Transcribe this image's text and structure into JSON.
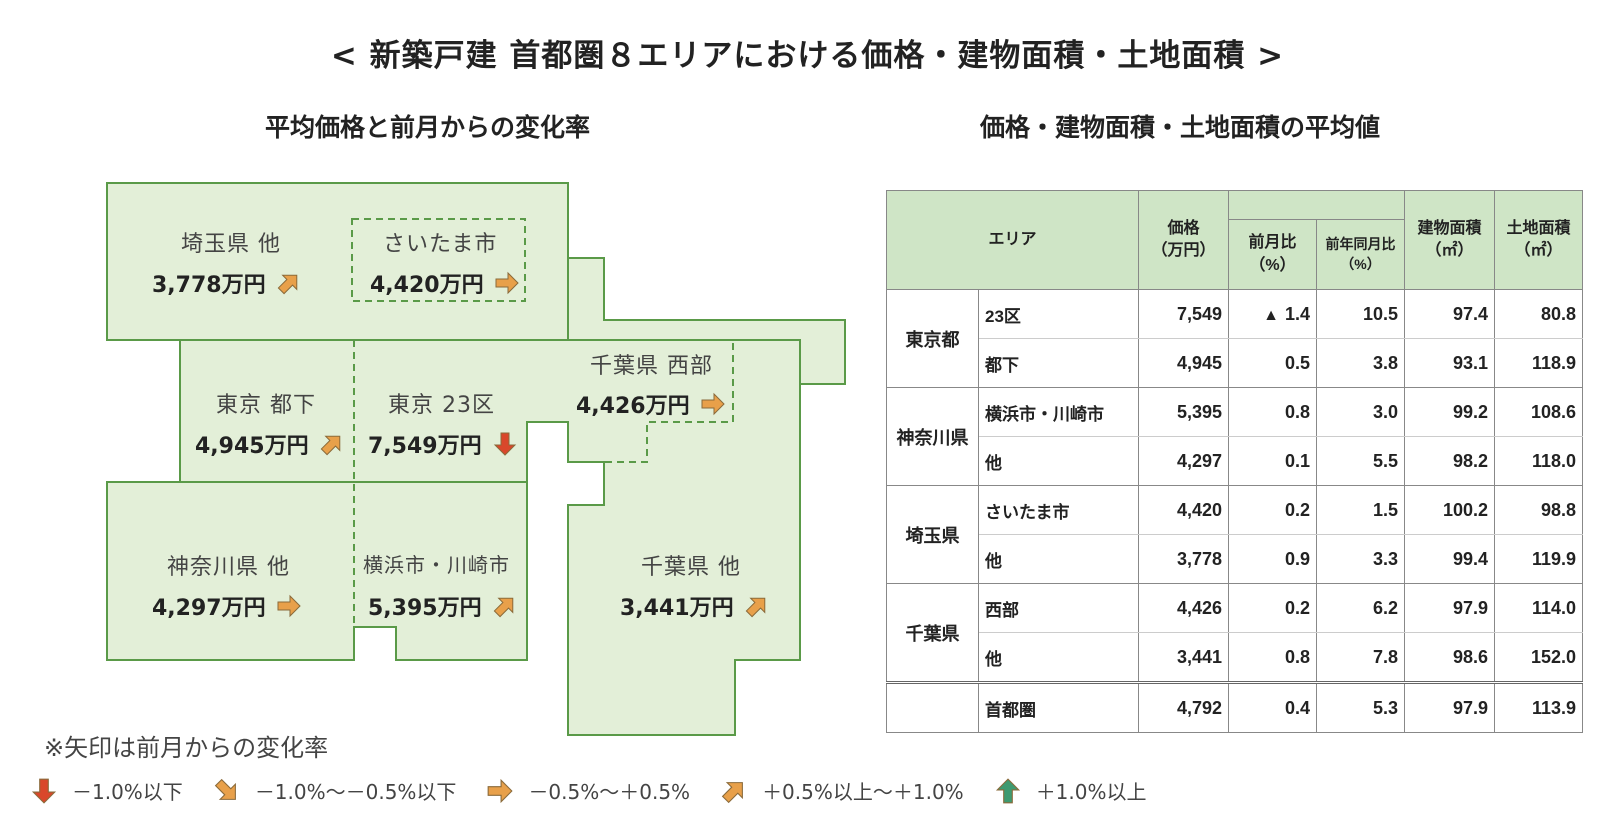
{
  "title": "< 新築戸建  首都圏８エリアにおける価格・建物面積・土地面積 >",
  "left_heading": "平均価格と前月からの変化率",
  "right_heading": "価格・建物面積・土地面積の平均値",
  "colors": {
    "region_fill": "#e3efd8",
    "region_stroke": "#5a9a48",
    "header_fill": "#cfe5c6",
    "arrow_down": "#d9472b",
    "arrow_flat": "#e8a04a",
    "arrow_up": "#3e9a70"
  },
  "chart_data": {
    "type": "table",
    "map_regions": [
      {
        "id": "saitama-other",
        "name": "埼玉県 他",
        "price": "3,778万円",
        "trend": "up-slight"
      },
      {
        "id": "saitama-city",
        "name": "さいたま市",
        "price": "4,420万円",
        "trend": "flat"
      },
      {
        "id": "tokyo-other",
        "name": "東京 都下",
        "price": "4,945万円",
        "trend": "up-slight"
      },
      {
        "id": "tokyo-23",
        "name": "東京 23区",
        "price": "7,549万円",
        "trend": "down"
      },
      {
        "id": "chiba-west",
        "name": "千葉県 西部",
        "price": "4,426万円",
        "trend": "flat"
      },
      {
        "id": "kanagawa-other",
        "name": "神奈川県 他",
        "price": "4,297万円",
        "trend": "flat"
      },
      {
        "id": "yokohama-kawasaki",
        "name": "横浜市・川崎市",
        "price": "5,395万円",
        "trend": "up-slight"
      },
      {
        "id": "chiba-other",
        "name": "千葉県 他",
        "price": "3,441万円",
        "trend": "up-slight"
      }
    ],
    "note": "※矢印は前月からの変化率",
    "legend": [
      {
        "trend": "down",
        "label": "－1.0%以下"
      },
      {
        "trend": "down-slight",
        "label": "－1.0%～－0.5%以下"
      },
      {
        "trend": "flat",
        "label": "－0.5%～＋0.5%"
      },
      {
        "trend": "up-slight",
        "label": "＋0.5%以上～＋1.0%"
      },
      {
        "trend": "up",
        "label": "＋1.0%以上"
      }
    ],
    "table": {
      "headers": {
        "area": "エリア",
        "price": "価格",
        "price_unit": "（万円）",
        "mom": "前月比",
        "mom_unit": "（%）",
        "yoy": "前年同月比",
        "yoy_unit": "（%）",
        "building": "建物面積",
        "building_unit": "（㎡）",
        "land": "土地面積",
        "land_unit": "（㎡）"
      },
      "groups": [
        {
          "pref": "東京都",
          "rows": [
            {
              "area": "23区",
              "price": "7,549",
              "mom_mark": "▲",
              "mom": "1.4",
              "yoy": "10.5",
              "building": "97.4",
              "land": "80.8"
            },
            {
              "area": "都下",
              "price": "4,945",
              "mom_mark": "",
              "mom": "0.5",
              "yoy": "3.8",
              "building": "93.1",
              "land": "118.9"
            }
          ]
        },
        {
          "pref": "神奈川県",
          "rows": [
            {
              "area": "横浜市・川崎市",
              "price": "5,395",
              "mom_mark": "",
              "mom": "0.8",
              "yoy": "3.0",
              "building": "99.2",
              "land": "108.6"
            },
            {
              "area": "他",
              "price": "4,297",
              "mom_mark": "",
              "mom": "0.1",
              "yoy": "5.5",
              "building": "98.2",
              "land": "118.0"
            }
          ]
        },
        {
          "pref": "埼玉県",
          "rows": [
            {
              "area": "さいたま市",
              "price": "4,420",
              "mom_mark": "",
              "mom": "0.2",
              "yoy": "1.5",
              "building": "100.2",
              "land": "98.8"
            },
            {
              "area": "他",
              "price": "3,778",
              "mom_mark": "",
              "mom": "0.9",
              "yoy": "3.3",
              "building": "99.4",
              "land": "119.9"
            }
          ]
        },
        {
          "pref": "千葉県",
          "rows": [
            {
              "area": "西部",
              "price": "4,426",
              "mom_mark": "",
              "mom": "0.2",
              "yoy": "6.2",
              "building": "97.9",
              "land": "114.0"
            },
            {
              "area": "他",
              "price": "3,441",
              "mom_mark": "",
              "mom": "0.8",
              "yoy": "7.8",
              "building": "98.6",
              "land": "152.0"
            }
          ]
        }
      ],
      "total": {
        "area": "首都圏",
        "price": "4,792",
        "mom": "0.4",
        "yoy": "5.3",
        "building": "97.9",
        "land": "113.9"
      }
    }
  }
}
